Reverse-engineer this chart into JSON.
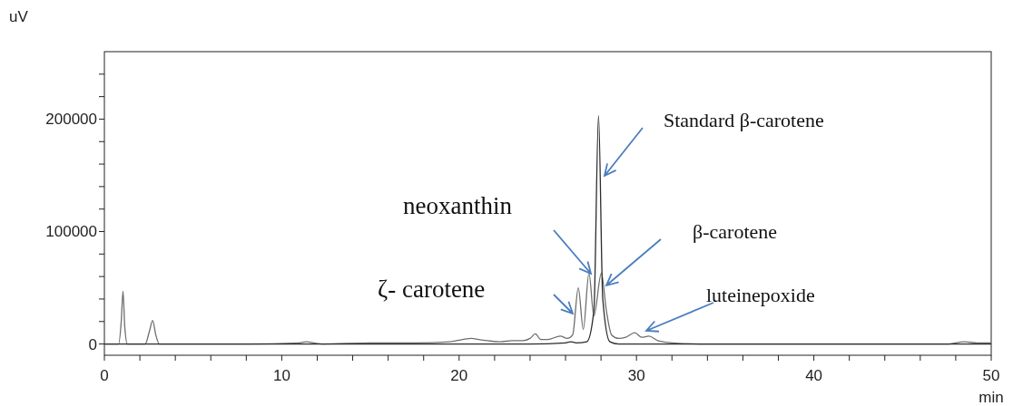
{
  "chart_data": {
    "type": "line",
    "xlabel": "min",
    "ylabel": "uV",
    "xlim": [
      0,
      50
    ],
    "ylim": [
      -10000,
      260000
    ],
    "xticks": [
      0,
      {
        "value": 2,
        "label": null
      },
      {
        "value": 4,
        "label": null
      },
      {
        "value": 6,
        "label": null
      },
      {
        "value": 8,
        "label": null
      },
      10,
      {
        "value": 12,
        "label": null
      },
      {
        "value": 14,
        "label": null
      },
      {
        "value": 16,
        "label": null
      },
      {
        "value": 18,
        "label": null
      },
      20,
      {
        "value": 22,
        "label": null
      },
      {
        "value": 24,
        "label": null
      },
      {
        "value": 26,
        "label": null
      },
      {
        "value": 28,
        "label": null
      },
      30,
      {
        "value": 32,
        "label": null
      },
      {
        "value": 34,
        "label": null
      },
      {
        "value": 36,
        "label": null
      },
      {
        "value": 38,
        "label": null
      },
      40,
      {
        "value": 42,
        "label": null
      },
      {
        "value": 44,
        "label": null
      },
      {
        "value": 46,
        "label": null
      },
      {
        "value": 48,
        "label": null
      },
      50
    ],
    "yticks": [
      0,
      {
        "value": 20000,
        "label": null
      },
      {
        "value": 40000,
        "label": null
      },
      {
        "value": 60000,
        "label": null
      },
      {
        "value": 80000,
        "label": null
      },
      100000,
      {
        "value": 120000,
        "label": null
      },
      {
        "value": 140000,
        "label": null
      },
      {
        "value": 160000,
        "label": null
      },
      {
        "value": 180000,
        "label": null
      },
      200000,
      {
        "value": 220000,
        "label": null
      },
      {
        "value": 240000,
        "label": null
      }
    ],
    "legend": false,
    "marker": "none",
    "line_style": "solid",
    "series": [
      {
        "color": "#6e6e6e",
        "x": [
          0,
          0.8,
          0.95,
          1.05,
          1.15,
          1.3,
          2.3,
          2.55,
          2.72,
          2.9,
          3.1,
          4,
          8,
          11,
          11.4,
          11.8,
          12.3,
          15,
          17.5,
          19.5,
          20.2,
          20.7,
          21.1,
          21.6,
          22.3,
          23,
          23.6,
          24,
          24.3,
          24.6,
          25,
          25.7,
          26.1,
          26.4,
          26.72,
          27.0,
          27.32,
          27.6,
          28.02,
          28.3,
          28.6,
          29,
          29.4,
          29.9,
          30.3,
          30.7,
          31.2,
          32,
          34,
          40,
          47.5,
          48.5,
          49.2,
          50
        ],
        "values": [
          0,
          0,
          20000,
          47000,
          15000,
          0,
          0,
          12000,
          21000,
          8000,
          0,
          0,
          0,
          1000,
          2000,
          1000,
          0,
          1000,
          1000,
          2000,
          4000,
          5000,
          4000,
          3000,
          2000,
          3000,
          3000,
          5000,
          9000,
          4000,
          4000,
          7000,
          5000,
          8000,
          50000,
          13000,
          63000,
          25000,
          63000,
          30000,
          8000,
          5000,
          6000,
          10000,
          6000,
          7000,
          3000,
          1000,
          0,
          0,
          0,
          2000,
          1000,
          1000
        ]
      },
      {
        "color": "#2b2b2b",
        "x": [
          0,
          20,
          24,
          26,
          26.3,
          26.6,
          27.2,
          27.6,
          27.86,
          28.1,
          28.5,
          29,
          32,
          50
        ],
        "values": [
          0,
          0,
          0,
          1000,
          2000,
          1000,
          2000,
          30000,
          203000,
          40000,
          2000,
          0,
          0,
          0
        ]
      }
    ],
    "annotations": [
      "Standard β-carotene",
      "neoxanthin",
      "β-carotene",
      "ζ- carotene",
      "luteinepoxide"
    ]
  }
}
